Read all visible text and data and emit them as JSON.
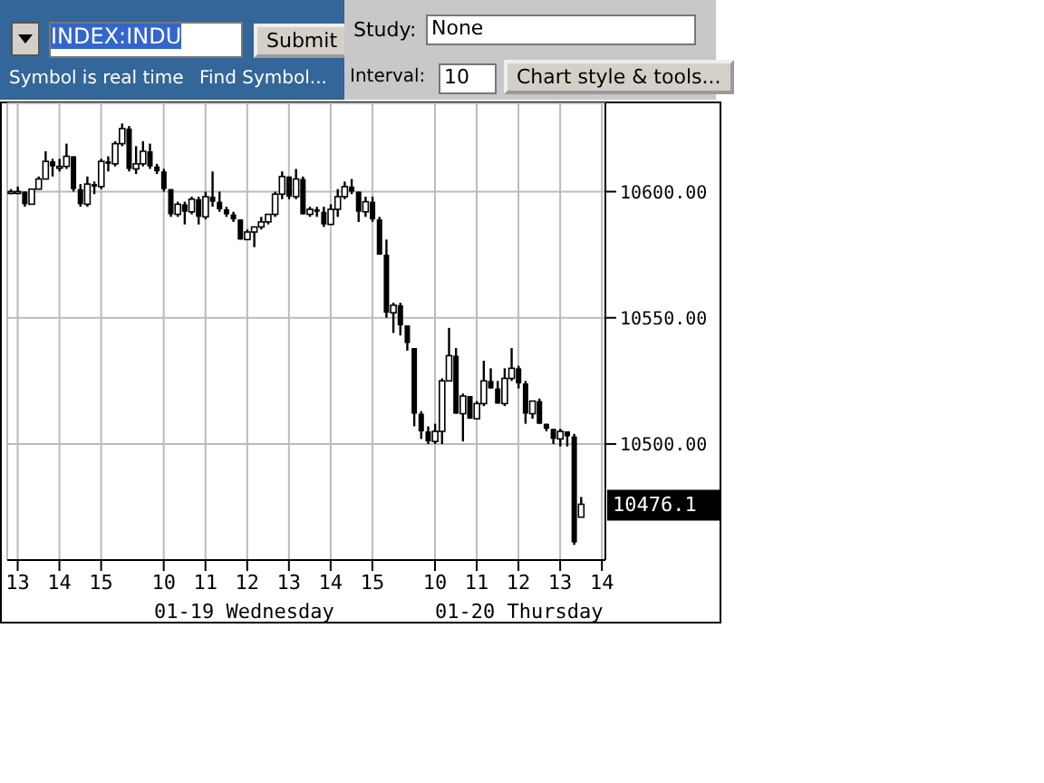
{
  "chart_data": {
    "type": "candlestick",
    "categories": [
      null,
      "13",
      null,
      null,
      null,
      null,
      null,
      "14",
      null,
      null,
      null,
      null,
      null,
      "15",
      null,
      null,
      null,
      null,
      null,
      null,
      null,
      null,
      "10",
      null,
      null,
      null,
      null,
      null,
      "11",
      null,
      null,
      null,
      null,
      null,
      "12",
      null,
      null,
      null,
      null,
      null,
      "13",
      null,
      null,
      null,
      null,
      null,
      "14",
      null,
      null,
      null,
      null,
      null,
      "15",
      null,
      null,
      null,
      null,
      null,
      null,
      null,
      null,
      "10",
      null,
      null,
      null,
      null,
      null,
      "11",
      null,
      null,
      null,
      null,
      null,
      "12",
      null,
      null,
      null,
      null,
      null,
      "13",
      null,
      null,
      null,
      null,
      null,
      "14"
    ],
    "ohlc": [
      [
        10600,
        10601,
        10599,
        10600
      ],
      [
        10600,
        10602,
        10599,
        10600
      ],
      [
        10600,
        10600,
        10594,
        10595
      ],
      [
        10595,
        10601,
        10595,
        10601
      ],
      [
        10601,
        10606,
        10601,
        10605
      ],
      [
        10605,
        10616,
        10605,
        10612
      ],
      [
        10612,
        10613,
        10606,
        10610
      ],
      [
        10610,
        10613,
        10608,
        10610
      ],
      [
        10610,
        10619,
        10609,
        10614
      ],
      [
        10614,
        10614,
        10600,
        10601
      ],
      [
        10601,
        10603,
        10594,
        10595
      ],
      [
        10595,
        10606,
        10594,
        10603
      ],
      [
        10603,
        10604,
        10599,
        10602
      ],
      [
        10602,
        10613,
        10601,
        10612
      ],
      [
        10612,
        10614,
        10608,
        10611
      ],
      [
        10611,
        10620,
        10610,
        10619
      ],
      [
        10619,
        10627,
        10618,
        10625
      ],
      [
        10625,
        10626,
        10608,
        10609
      ],
      [
        10609,
        10618,
        10607,
        10611
      ],
      [
        10611,
        10620,
        10610,
        10616
      ],
      [
        10616,
        10619,
        10609,
        10610
      ],
      [
        10610,
        10611,
        10607,
        10608
      ],
      [
        10608,
        10609,
        10600,
        10601
      ],
      [
        10601,
        10601,
        10590,
        10591
      ],
      [
        10591,
        10596,
        10590,
        10595
      ],
      [
        10595,
        10596,
        10587,
        10592
      ],
      [
        10592,
        10598,
        10591,
        10597
      ],
      [
        10597,
        10598,
        10587,
        10590
      ],
      [
        10590,
        10600,
        10589,
        10598
      ],
      [
        10598,
        10608,
        10594,
        10596
      ],
      [
        10596,
        10600,
        10592,
        10593
      ],
      [
        10593,
        10594,
        10590,
        10591
      ],
      [
        10591,
        10592,
        10588,
        10589
      ],
      [
        10589,
        10589,
        10581,
        10581
      ],
      [
        10581,
        10585,
        10581,
        10584
      ],
      [
        10584,
        10586,
        10578,
        10586
      ],
      [
        10586,
        10590,
        10585,
        10588
      ],
      [
        10588,
        10591,
        10587,
        10591
      ],
      [
        10591,
        10600,
        10590,
        10599
      ],
      [
        10599,
        10608,
        10597,
        10606
      ],
      [
        10606,
        10606,
        10597,
        10598
      ],
      [
        10598,
        10609,
        10597,
        10605
      ],
      [
        10605,
        10606,
        10591,
        10591
      ],
      [
        10591,
        10594,
        10590,
        10593
      ],
      [
        10593,
        10594,
        10590,
        10592
      ],
      [
        10592,
        10594,
        10586,
        10587
      ],
      [
        10587,
        10595,
        10587,
        10593
      ],
      [
        10593,
        10601,
        10590,
        10598
      ],
      [
        10598,
        10604,
        10597,
        10602
      ],
      [
        10602,
        10605,
        10599,
        10600
      ],
      [
        10600,
        10600,
        10588,
        10592
      ],
      [
        10592,
        10598,
        10590,
        10596
      ],
      [
        10596,
        10598,
        10588,
        10589
      ],
      [
        10589,
        10590,
        10575,
        10575
      ],
      [
        10575,
        10581,
        10550,
        10552
      ],
      [
        10552,
        10556,
        10544,
        10555
      ],
      [
        10555,
        10556,
        10543,
        10547
      ],
      [
        10547,
        10547,
        10537,
        10540
      ],
      [
        10538,
        10538,
        10507,
        10512
      ],
      [
        10512,
        10513,
        10502,
        10505
      ],
      [
        10505,
        10507,
        10500,
        10501
      ],
      [
        10501,
        10508,
        10500,
        10505
      ],
      [
        10505,
        10526,
        10500,
        10525
      ],
      [
        10525,
        10546,
        10525,
        10535
      ],
      [
        10535,
        10538,
        10512,
        10512
      ],
      [
        10512,
        10520,
        10501,
        10519
      ],
      [
        10519,
        10519,
        10510,
        10510
      ],
      [
        10510,
        10517,
        10510,
        10516
      ],
      [
        10516,
        10533,
        10515,
        10525
      ],
      [
        10525,
        10530,
        10522,
        10522
      ],
      [
        10522,
        10525,
        10516,
        10516
      ],
      [
        10516,
        10530,
        10515,
        10526
      ],
      [
        10526,
        10538,
        10525,
        10530
      ],
      [
        10530,
        10531,
        10522,
        10524
      ],
      [
        10524,
        10525,
        10508,
        10512
      ],
      [
        10512,
        10517,
        10510,
        10517
      ],
      [
        10517,
        10518,
        10508,
        10508
      ],
      [
        10508,
        10508,
        10505,
        10506
      ],
      [
        10506,
        10506,
        10500,
        10502
      ],
      [
        10502,
        10506,
        10499,
        10505
      ],
      [
        10505,
        10505,
        10499,
        10503
      ],
      [
        10503,
        10504,
        10460,
        10461
      ],
      [
        10471,
        10479,
        10471,
        10476.1
      ],
      null,
      null,
      null
    ],
    "color": "#000000",
    "ylim": [
      10454,
      10635
    ],
    "yticks": [
      {
        "value": 10500,
        "label": "10500.00"
      },
      {
        "value": 10550,
        "label": "10550.00"
      },
      {
        "value": 10600,
        "label": "10600.00"
      }
    ],
    "grid": true,
    "annotations": [
      "INDEX:INDU",
      "Submit",
      "Symbol is real time",
      "Find Symbol...",
      "Study:",
      "None",
      "Interval:",
      "10",
      "Chart style & tools...",
      "01-19 Wednesday",
      "01-20 Thursday",
      "10476.1"
    ]
  }
}
